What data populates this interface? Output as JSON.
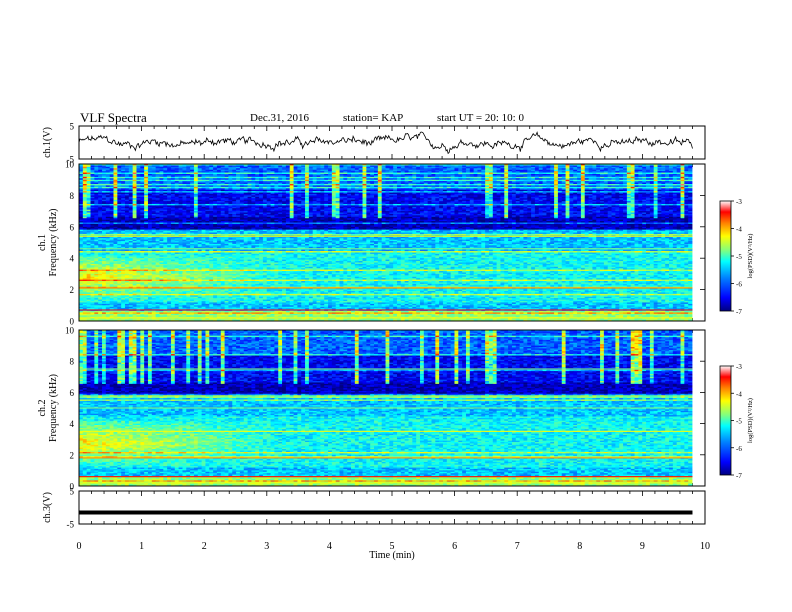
{
  "header": {
    "title": "VLF Spectra",
    "date": "Dec.31, 2016",
    "station": "station= KAP",
    "start_ut": "start UT =   20: 10: 0"
  },
  "chart_data": [
    {
      "type": "line",
      "panel": "ch1-waveform",
      "ylabel": "ch.1(V)",
      "ylim": [
        -5,
        5
      ],
      "yticks": [
        "5",
        "-5"
      ],
      "xlim": [
        0,
        10
      ],
      "data_extent_min": 9.8,
      "series_color": "#000000",
      "typical_level_v": 0
    },
    {
      "type": "heatmap",
      "panel": "ch1-spectrogram",
      "ylabel": "ch.1\nFrequency (kHz)",
      "ylim": [
        0,
        10
      ],
      "yticks": [
        "0",
        "2",
        "4",
        "6",
        "8",
        "10"
      ],
      "xlim": [
        0,
        10
      ],
      "colorbar": {
        "label": "log(PSD)(V²/Hz)",
        "range": [
          -7,
          -3
        ],
        "ticks": [
          "-3",
          "-4",
          "-5",
          "-6",
          "-7"
        ]
      }
    },
    {
      "type": "heatmap",
      "panel": "ch2-spectrogram",
      "ylabel": "ch.2\nFrequency (kHz)",
      "ylim": [
        0,
        10
      ],
      "yticks": [
        "0",
        "2",
        "4",
        "6",
        "8",
        "10"
      ],
      "xlim": [
        0,
        10
      ],
      "colorbar": {
        "label": "log(PSD)(V²/Hz)",
        "range": [
          -7,
          -3
        ],
        "ticks": [
          "-3",
          "-4",
          "-5",
          "-6",
          "-7"
        ]
      }
    },
    {
      "type": "line",
      "panel": "ch3-waveform",
      "ylabel": "ch.3(V)",
      "ylim": [
        -5,
        5
      ],
      "yticks": [
        "5",
        "-5"
      ],
      "xlim": [
        0,
        10
      ],
      "series": [
        {
          "x": [
            0,
            9.8
          ],
          "y": [
            -1.5,
            -1.5
          ]
        }
      ]
    }
  ],
  "xaxis": {
    "label": "Time (min)",
    "ticks": [
      "0",
      "1",
      "2",
      "3",
      "4",
      "5",
      "6",
      "7",
      "8",
      "9",
      "10"
    ]
  },
  "colors": {
    "colormap": [
      "#00007f",
      "#0000ff",
      "#0080ff",
      "#00ffff",
      "#80ff80",
      "#ffff00",
      "#ff8000",
      "#ff0000",
      "#ffffff"
    ]
  }
}
